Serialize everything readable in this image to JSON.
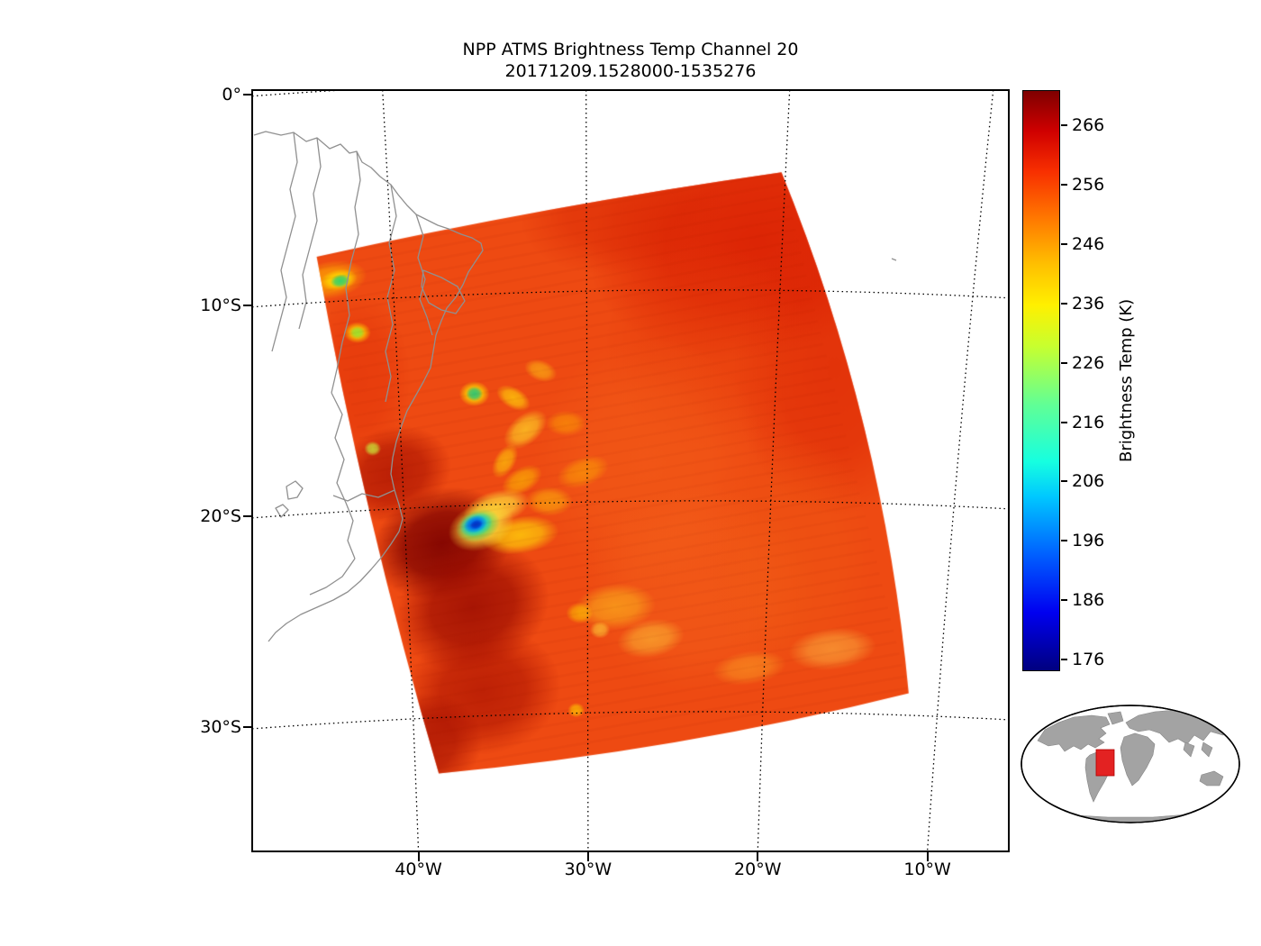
{
  "title": {
    "line1": "NPP ATMS Brightness Temp Channel 20",
    "line2": "20171209.1528000-1535276"
  },
  "axes": {
    "y_tick_labels": [
      "0°",
      "10°S",
      "20°S",
      "30°S"
    ],
    "x_tick_labels": [
      "40°W",
      "30°W",
      "20°W",
      "10°W"
    ]
  },
  "colorbar": {
    "label": "Brightness Temp (K)",
    "tick_labels": [
      "266",
      "256",
      "246",
      "236",
      "226",
      "216",
      "206",
      "196",
      "186",
      "176"
    ]
  },
  "chart_data": {
    "type": "heatmap",
    "title": "NPP ATMS Brightness Temp Channel 20",
    "subtitle": "20171209.1528000-1535276",
    "colorbar": {
      "label": "Brightness Temp (K)",
      "ticks": [
        266,
        256,
        246,
        236,
        226,
        216,
        206,
        196,
        186,
        176
      ],
      "value_range": [
        174,
        272
      ],
      "colormap": "jet",
      "colormap_stops": [
        [
          0.0,
          "#00007f"
        ],
        [
          0.1,
          "#0000f0"
        ],
        [
          0.2,
          "#0060ff"
        ],
        [
          0.3,
          "#00c8ff"
        ],
        [
          0.36,
          "#16ffe0"
        ],
        [
          0.46,
          "#62ff94"
        ],
        [
          0.56,
          "#c8ff2e"
        ],
        [
          0.63,
          "#fff000"
        ],
        [
          0.7,
          "#ffc000"
        ],
        [
          0.78,
          "#ff7800"
        ],
        [
          0.86,
          "#f83000"
        ],
        [
          0.93,
          "#d00000"
        ],
        [
          1.0,
          "#7f0000"
        ]
      ]
    },
    "map": {
      "lon_range": [
        -49.8,
        -5.2
      ],
      "lat_range": [
        -35.9,
        0.2
      ],
      "grid_lons": [
        -40,
        -30,
        -20,
        -10
      ],
      "grid_lats": [
        0,
        -10,
        -20,
        -30
      ]
    },
    "swath": {
      "corners_lonlat": [
        [
          -46.0,
          -7.7
        ],
        [
          -18.6,
          -3.7
        ],
        [
          -11.1,
          -28.4
        ],
        [
          -38.8,
          -32.2
        ]
      ],
      "base_color": "#ee4a12",
      "features": [
        {
          "lon": -20.0,
          "lat": -7.0,
          "rx": 10.0,
          "ry": 5.5,
          "rot": -10,
          "color": "#d81c02",
          "alpha": 0.8
        },
        {
          "lon": -15.5,
          "lat": -13.0,
          "rx": 6.0,
          "ry": 7.0,
          "rot": 0,
          "color": "#db2404",
          "alpha": 0.6
        },
        {
          "lon": -28.0,
          "lat": -5.5,
          "rx": 6.0,
          "ry": 3.0,
          "rot": -8,
          "color": "#d92604",
          "alpha": 0.55
        },
        {
          "lon": -23.0,
          "lat": -12.0,
          "rx": 6.0,
          "ry": 5.0,
          "rot": 0,
          "color": "#e53a0a",
          "alpha": 0.45
        },
        {
          "lon": -43.5,
          "lat": -13.5,
          "rx": 3.0,
          "ry": 4.0,
          "rot": 0,
          "color": "#e13008",
          "alpha": 0.5
        },
        {
          "lon": -26.5,
          "lat": -17.5,
          "rx": 7.0,
          "ry": 6.0,
          "rot": 0,
          "color": "#f4611a",
          "alpha": 0.5
        },
        {
          "lon": -23.5,
          "lat": -23.5,
          "rx": 7.0,
          "ry": 5.0,
          "rot": 0,
          "color": "#f5661d",
          "alpha": 0.45
        },
        {
          "lon": -18.0,
          "lat": -22.0,
          "rx": 5.0,
          "ry": 6.0,
          "rot": 0,
          "color": "#ef5a12",
          "alpha": 0.4
        },
        {
          "lon": -41.5,
          "lat": -18.0,
          "rx": 3.5,
          "ry": 2.2,
          "rot": -20,
          "color": "#a60e00",
          "alpha": 0.7
        },
        {
          "lon": -38.6,
          "lat": -21.3,
          "rx": 4.2,
          "ry": 2.6,
          "rot": -18,
          "color": "#7e0200",
          "alpha": 0.92
        },
        {
          "lon": -36.8,
          "lat": -24.3,
          "rx": 4.6,
          "ry": 3.0,
          "rot": -22,
          "color": "#960800",
          "alpha": 0.8
        },
        {
          "lon": -36.2,
          "lat": -28.3,
          "rx": 4.6,
          "ry": 3.0,
          "rot": -10,
          "color": "#aa1000",
          "alpha": 0.7
        },
        {
          "lon": -39.8,
          "lat": -30.8,
          "rx": 3.6,
          "ry": 2.4,
          "rot": -12,
          "color": "#a00c00",
          "alpha": 0.7
        },
        {
          "lon": -34.4,
          "lat": -14.4,
          "rx": 1.1,
          "ry": 0.5,
          "rot": 30,
          "color": "#ffd20a",
          "alpha": 0.75
        },
        {
          "lon": -33.7,
          "lat": -15.9,
          "rx": 1.5,
          "ry": 0.7,
          "rot": -40,
          "color": "#ffdc28",
          "alpha": 0.7
        },
        {
          "lon": -34.9,
          "lat": -17.4,
          "rx": 1.1,
          "ry": 0.5,
          "rot": -60,
          "color": "#ffd20a",
          "alpha": 0.65
        },
        {
          "lon": -33.9,
          "lat": -18.3,
          "rx": 1.3,
          "ry": 0.6,
          "rot": -30,
          "color": "#ffc800",
          "alpha": 0.6
        },
        {
          "lon": -35.4,
          "lat": -19.6,
          "rx": 2.0,
          "ry": 0.8,
          "rot": -15,
          "color": "#ffe13c",
          "alpha": 0.8
        },
        {
          "lon": -34.0,
          "lat": -20.9,
          "rx": 2.3,
          "ry": 0.9,
          "rot": -8,
          "color": "#ffd20a",
          "alpha": 0.8
        },
        {
          "lon": -32.3,
          "lat": -19.3,
          "rx": 1.4,
          "ry": 0.7,
          "rot": 0,
          "color": "#ffc30a",
          "alpha": 0.55
        },
        {
          "lon": -32.8,
          "lat": -13.1,
          "rx": 1.0,
          "ry": 0.5,
          "rot": 20,
          "color": "#ffcf14",
          "alpha": 0.55
        },
        {
          "lon": -31.3,
          "lat": -15.6,
          "rx": 1.2,
          "ry": 0.6,
          "rot": 0,
          "color": "#ffae00",
          "alpha": 0.5
        },
        {
          "lon": -30.3,
          "lat": -17.9,
          "rx": 1.6,
          "ry": 0.7,
          "rot": -20,
          "color": "#ffb400",
          "alpha": 0.5
        },
        {
          "lon": -28.4,
          "lat": -24.3,
          "rx": 2.4,
          "ry": 1.1,
          "rot": -5,
          "color": "#ffc81e",
          "alpha": 0.55
        },
        {
          "lon": -26.3,
          "lat": -25.8,
          "rx": 2.0,
          "ry": 0.9,
          "rot": -10,
          "color": "#ffd43c",
          "alpha": 0.5
        },
        {
          "lon": -30.5,
          "lat": -24.6,
          "rx": 0.8,
          "ry": 0.5,
          "rot": 0,
          "color": "#ffd200",
          "alpha": 0.6
        },
        {
          "lon": -29.3,
          "lat": -25.4,
          "rx": 0.6,
          "ry": 0.4,
          "rot": 0,
          "color": "#ffdc3c",
          "alpha": 0.6
        },
        {
          "lon": -30.7,
          "lat": -29.2,
          "rx": 0.5,
          "ry": 0.35,
          "rot": 0,
          "color": "#ffd200",
          "alpha": 0.7
        },
        {
          "lon": -20.5,
          "lat": -27.2,
          "rx": 2.2,
          "ry": 0.8,
          "rot": -8,
          "color": "#ffb428",
          "alpha": 0.45
        },
        {
          "lon": -15.6,
          "lat": -26.3,
          "rx": 2.6,
          "ry": 1.0,
          "rot": -6,
          "color": "#ffc84a",
          "alpha": 0.5
        },
        {
          "lon": -45.2,
          "lat": -8.8,
          "rx": 2.2,
          "ry": 0.9,
          "rot": -10,
          "color": "#ffb400",
          "alpha": 0.7
        },
        {
          "lon": -44.7,
          "lat": -8.8,
          "rx": 1.1,
          "ry": 0.5,
          "rot": -10,
          "color": "#ffe100",
          "alpha": 0.85
        },
        {
          "lon": -44.6,
          "lat": -8.85,
          "rx": 0.6,
          "ry": 0.32,
          "rot": -10,
          "color": "#2ed26e",
          "alpha": 0.95
        },
        {
          "lon": -43.6,
          "lat": -11.3,
          "rx": 0.8,
          "ry": 0.5,
          "rot": 0,
          "color": "#ffe100",
          "alpha": 0.8
        },
        {
          "lon": -43.6,
          "lat": -11.3,
          "rx": 0.45,
          "ry": 0.3,
          "rot": 0,
          "color": "#96e632",
          "alpha": 0.9
        },
        {
          "lon": -36.7,
          "lat": -14.2,
          "rx": 0.9,
          "ry": 0.6,
          "rot": 0,
          "color": "#ffe100",
          "alpha": 0.85
        },
        {
          "lon": -36.7,
          "lat": -14.2,
          "rx": 0.5,
          "ry": 0.35,
          "rot": 0,
          "color": "#28c878",
          "alpha": 0.95
        },
        {
          "lon": -42.7,
          "lat": -16.8,
          "rx": 0.5,
          "ry": 0.35,
          "rot": 0,
          "color": "#c8f03c",
          "alpha": 0.8
        },
        {
          "lon": -36.3,
          "lat": -20.5,
          "rx": 2.0,
          "ry": 1.1,
          "rot": -20,
          "color": "#ffe13c",
          "alpha": 0.9
        },
        {
          "lon": -36.5,
          "lat": -20.45,
          "rx": 1.35,
          "ry": 0.75,
          "rot": -20,
          "color": "#50dc64",
          "alpha": 0.9
        },
        {
          "lon": -36.6,
          "lat": -20.4,
          "rx": 1.0,
          "ry": 0.55,
          "rot": -20,
          "color": "#00c8e6",
          "alpha": 0.95
        },
        {
          "lon": -36.65,
          "lat": -20.38,
          "rx": 0.7,
          "ry": 0.4,
          "rot": -20,
          "color": "#0064f0",
          "alpha": 0.95
        },
        {
          "lon": -36.6,
          "lat": -20.4,
          "rx": 0.4,
          "ry": 0.22,
          "rot": -20,
          "color": "#0032c8",
          "alpha": 0.95
        }
      ]
    },
    "inset": {
      "highlight_color": "#e32222"
    }
  }
}
